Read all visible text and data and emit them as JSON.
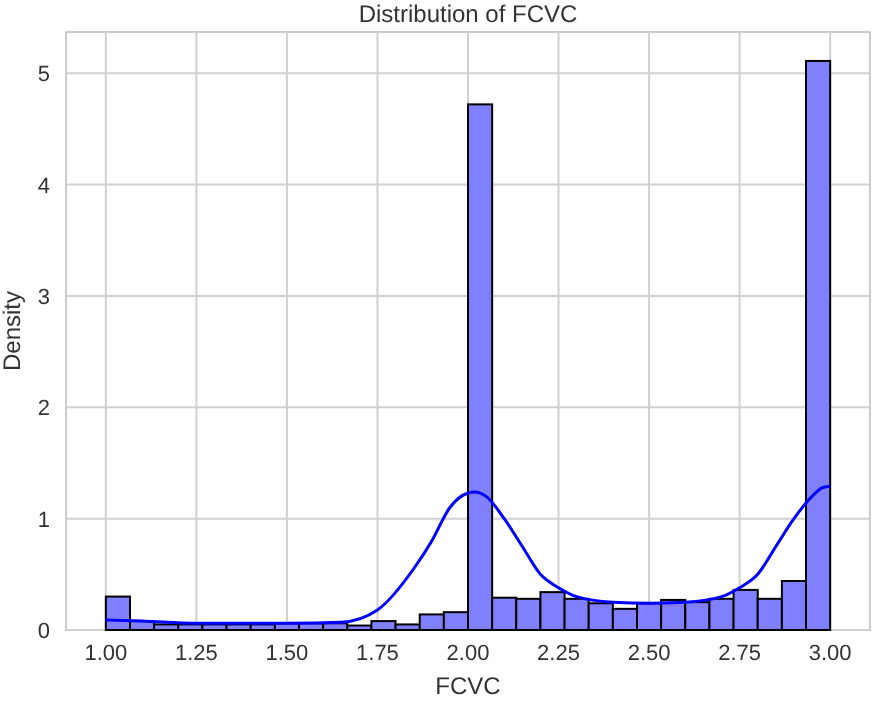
{
  "chart_data": {
    "type": "histogram",
    "title": "Distribution of FCVC",
    "xlabel": "FCVC",
    "ylabel": "Density",
    "series": [
      {
        "color": "#8080ff",
        "bins": [
          1,
          1.0667,
          1.1333,
          1.2,
          1.2667,
          1.3333,
          1.4,
          1.4667,
          1.5333,
          1.6,
          1.6667,
          1.7333,
          1.8,
          1.8667,
          1.9333,
          2,
          2.0667,
          2.1333,
          2.2,
          2.2667,
          2.3333,
          2.4,
          2.4667,
          2.5333,
          2.6,
          2.6667,
          2.7333,
          2.8,
          2.8667,
          2.9333,
          3
        ],
        "values": [
          0.3,
          0.08,
          0.05,
          0.05,
          0.05,
          0.05,
          0.05,
          0.06,
          0.06,
          0.06,
          0.04,
          0.08,
          0.05,
          0.14,
          0.16,
          4.72,
          0.29,
          0.28,
          0.34,
          0.28,
          0.24,
          0.19,
          0.24,
          0.27,
          0.25,
          0.28,
          0.36,
          0.28,
          0.44,
          5.11
        ]
      },
      {
        "type": "line",
        "color": "#0000ff",
        "x": [
          1,
          1.1,
          1.25,
          1.5,
          1.65,
          1.75,
          1.85,
          1.9,
          1.95,
          2,
          2.02,
          2.05,
          2.1,
          2.15,
          2.2,
          2.25,
          2.3,
          2.4,
          2.5,
          2.6,
          2.7,
          2.75,
          2.8,
          2.85,
          2.9,
          2.95,
          2.98,
          3
        ],
        "values": [
          0.09,
          0.08,
          0.06,
          0.06,
          0.07,
          0.18,
          0.55,
          0.8,
          1.1,
          1.23,
          1.24,
          1.2,
          1,
          0.75,
          0.5,
          0.38,
          0.3,
          0.25,
          0.24,
          0.25,
          0.3,
          0.38,
          0.5,
          0.75,
          1,
          1.2,
          1.28,
          1.29
        ]
      }
    ],
    "xlim": [
      0.89,
      3.11
    ],
    "ylim": [
      0,
      5.37
    ],
    "xticks": [
      {
        "value": 1,
        "label": "1.00"
      },
      {
        "value": 1.25,
        "label": "1.25"
      },
      {
        "value": 1.5,
        "label": "1.50"
      },
      {
        "value": 1.75,
        "label": "1.75"
      },
      {
        "value": 2,
        "label": "2.00"
      },
      {
        "value": 2.25,
        "label": "2.25"
      },
      {
        "value": 2.5,
        "label": "2.50"
      },
      {
        "value": 2.75,
        "label": "2.75"
      },
      {
        "value": 3,
        "label": "3.00"
      }
    ],
    "yticks": [
      0,
      1,
      2,
      3,
      4,
      5
    ],
    "grid": true
  }
}
